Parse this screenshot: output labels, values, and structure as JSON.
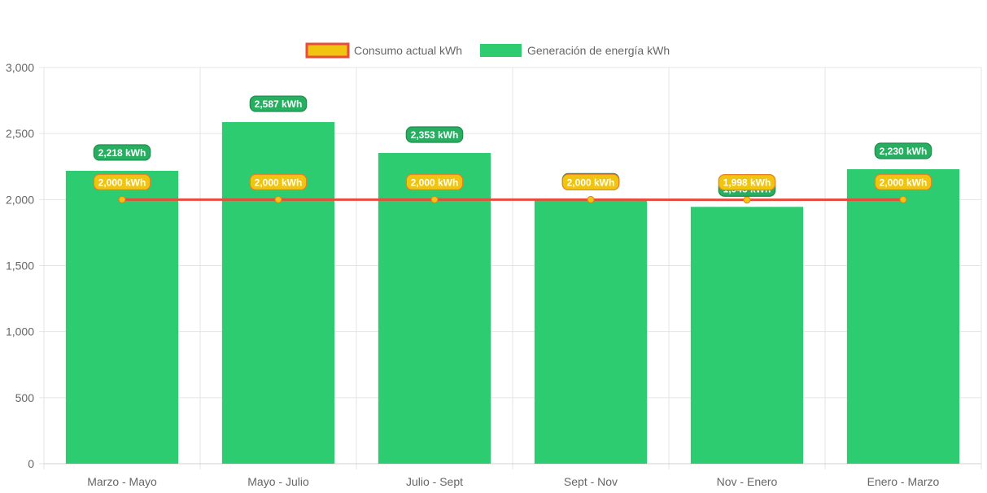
{
  "chart_data": {
    "type": "bar",
    "categories": [
      "Marzo - Mayo",
      "Mayo - Julio",
      "Julio - Sept",
      "Sept - Nov",
      "Nov - Enero",
      "Enero - Marzo"
    ],
    "series": [
      {
        "name": "Consumo actual kWh",
        "type": "line",
        "values": [
          2000,
          2000,
          2000,
          2000,
          1998,
          2000
        ],
        "labels": [
          "2,000 kWh",
          "2,000 kWh",
          "2,000 kWh",
          "2,000 kWh",
          "1,998 kWh",
          "2,000 kWh"
        ],
        "color": "#e74c3c",
        "point_color": "#f1c40f"
      },
      {
        "name": "Generación de energía kWh",
        "type": "bar",
        "values": [
          2218,
          2587,
          2353,
          2000,
          1945,
          2230
        ],
        "labels": [
          "2,218 kWh",
          "2,587 kWh",
          "2,353 kWh",
          "2,000 kWh",
          "1,945 kWh",
          "2,230 kWh"
        ],
        "color": "#2ecc71"
      }
    ],
    "y_ticks": [
      "0",
      "500",
      "1,000",
      "1,500",
      "2,000",
      "2,500",
      "3,000"
    ],
    "ylim": [
      0,
      3000
    ],
    "grid": true,
    "legend_position": "top-center"
  }
}
